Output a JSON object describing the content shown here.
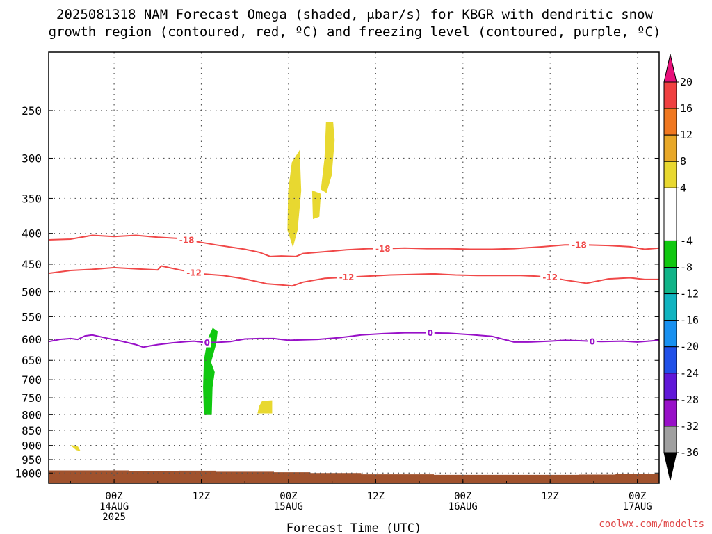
{
  "chart_data": {
    "type": "contour",
    "title_line1": "2025081318 NAM Forecast Omega (shaded, μbar/s) for KBGR with dendritic snow",
    "title_line2": "growth region (contoured, red, ºC) and freezing level (contoured, purple, ºC)",
    "xlabel": "Forecast Time (UTC)",
    "credit": "coolwx.com/modelts",
    "xlim": [
      -3,
      81
    ],
    "x_ticks": [
      {
        "hour": 6,
        "line1": "00Z",
        "line2": "14AUG",
        "line3": "2025"
      },
      {
        "hour": 18,
        "line1": "12Z",
        "line2": "",
        "line3": ""
      },
      {
        "hour": 30,
        "line1": "00Z",
        "line2": "15AUG",
        "line3": ""
      },
      {
        "hour": 42,
        "line1": "12Z",
        "line2": "",
        "line3": ""
      },
      {
        "hour": 54,
        "line1": "00Z",
        "line2": "16AUG",
        "line3": ""
      },
      {
        "hour": 66,
        "line1": "12Z",
        "line2": "",
        "line3": ""
      },
      {
        "hour": 78,
        "line1": "00Z",
        "line2": "17AUG",
        "line3": ""
      }
    ],
    "y_scale": "log-pressure (reversed)",
    "ylim_hpa": [
      1040,
      200
    ],
    "y_ticks": [
      250,
      300,
      350,
      400,
      450,
      500,
      550,
      600,
      650,
      700,
      750,
      800,
      850,
      900,
      950,
      1000
    ],
    "grid": true,
    "colorbar": {
      "ticks": [
        "20",
        "16",
        "12",
        "8",
        "4",
        "-4",
        "-8",
        "-12",
        "-16",
        "-20",
        "-24",
        "-28",
        "-32",
        "-36"
      ],
      "segments": [
        {
          "from": 20,
          "to": 24,
          "color": "#e8107a",
          "end": "top-arrow"
        },
        {
          "from": 16,
          "to": 20,
          "color": "#f04040"
        },
        {
          "from": 12,
          "to": 16,
          "color": "#f07820"
        },
        {
          "from": 8,
          "to": 12,
          "color": "#e8a828"
        },
        {
          "from": 4,
          "to": 8,
          "color": "#e8d830"
        },
        {
          "from": -4,
          "to": 4,
          "color": "#ffffff"
        },
        {
          "from": -8,
          "to": -4,
          "color": "#10c810"
        },
        {
          "from": -12,
          "to": -8,
          "color": "#10b488"
        },
        {
          "from": -16,
          "to": -12,
          "color": "#10b4c0"
        },
        {
          "from": -20,
          "to": -16,
          "color": "#1890f0"
        },
        {
          "from": -24,
          "to": -20,
          "color": "#2050e8"
        },
        {
          "from": -28,
          "to": -24,
          "color": "#6018d8"
        },
        {
          "from": -32,
          "to": -28,
          "color": "#9810c8"
        },
        {
          "from": -36,
          "to": -32,
          "color": "#a0a0a0"
        },
        {
          "from": -40,
          "to": -36,
          "color": "#000000",
          "end": "bottom-arrow"
        }
      ]
    },
    "shaded_regions": [
      {
        "value_band": "4 to 8",
        "color": "#e8d830",
        "points": [
          [
            30.5,
            305
          ],
          [
            31.5,
            292
          ],
          [
            31.7,
            340
          ],
          [
            31.2,
            395
          ],
          [
            30.6,
            420
          ],
          [
            29.9,
            395
          ],
          [
            30.0,
            340
          ]
        ]
      },
      {
        "value_band": "4 to 8",
        "color": "#e8d830",
        "points": [
          [
            35.2,
            262
          ],
          [
            36.1,
            262
          ],
          [
            36.3,
            280
          ],
          [
            35.9,
            320
          ],
          [
            35.2,
            342
          ],
          [
            34.5,
            338
          ],
          [
            35.0,
            300
          ]
        ]
      },
      {
        "value_band": "4 to 8",
        "color": "#e8d830",
        "points": [
          [
            33.3,
            340
          ],
          [
            34.4,
            344
          ],
          [
            34.2,
            375
          ],
          [
            33.4,
            378
          ]
        ]
      },
      {
        "value_band": "-8 to -4",
        "color": "#10c810",
        "points": [
          [
            19.6,
            575
          ],
          [
            20.2,
            582
          ],
          [
            20.0,
            610
          ],
          [
            19.3,
            655
          ],
          [
            19.8,
            680
          ],
          [
            19.5,
            720
          ],
          [
            19.4,
            800
          ],
          [
            18.4,
            800
          ],
          [
            18.3,
            720
          ],
          [
            18.4,
            650
          ],
          [
            18.9,
            600
          ]
        ]
      },
      {
        "value_band": "4 to 8",
        "color": "#e8d830",
        "points": [
          [
            26.4,
            760
          ],
          [
            27.7,
            758
          ],
          [
            27.7,
            795
          ],
          [
            25.8,
            795
          ],
          [
            26.0,
            775
          ]
        ]
      },
      {
        "value_band": "4 to 8",
        "color": "#e8d830",
        "points": [
          [
            0.1,
            900
          ],
          [
            1.0,
            905
          ],
          [
            1.3,
            918
          ],
          [
            0.8,
            915
          ]
        ]
      }
    ],
    "ground": {
      "color": "#a0522d",
      "top": [
        [
          -3,
          990
        ],
        [
          3,
          990
        ],
        [
          8,
          993
        ],
        [
          15,
          991
        ],
        [
          20,
          995
        ],
        [
          28,
          997
        ],
        [
          33,
          1000
        ],
        [
          40,
          1005
        ],
        [
          50,
          1007
        ],
        [
          60,
          1007
        ],
        [
          70,
          1006
        ],
        [
          75,
          1003
        ],
        [
          81,
          1003
        ]
      ]
    },
    "contours": [
      {
        "name": "-18",
        "color": "#f04848",
        "labels_at": [
          16,
          43,
          70
        ],
        "points": [
          [
            -3,
            410
          ],
          [
            0,
            409
          ],
          [
            3,
            403
          ],
          [
            6,
            405
          ],
          [
            9,
            403
          ],
          [
            12,
            406
          ],
          [
            15,
            408
          ],
          [
            17,
            412
          ],
          [
            20,
            418
          ],
          [
            24,
            425
          ],
          [
            26,
            430
          ],
          [
            27.5,
            437
          ],
          [
            29,
            436
          ],
          [
            31,
            437
          ],
          [
            32,
            432
          ],
          [
            34,
            430
          ],
          [
            36,
            428
          ],
          [
            38,
            426
          ],
          [
            41,
            424
          ],
          [
            43,
            424
          ],
          [
            46,
            423
          ],
          [
            49,
            424
          ],
          [
            52,
            424
          ],
          [
            55,
            425
          ],
          [
            58,
            425
          ],
          [
            61,
            424
          ],
          [
            65,
            421
          ],
          [
            68,
            418
          ],
          [
            71,
            418
          ],
          [
            74,
            419
          ],
          [
            77,
            421
          ],
          [
            79,
            425
          ],
          [
            81,
            423
          ]
        ]
      },
      {
        "name": "-12",
        "color": "#f04848",
        "labels_at": [
          17,
          38,
          66
        ],
        "points": [
          [
            -3,
            466
          ],
          [
            0,
            461
          ],
          [
            3,
            459
          ],
          [
            6,
            456
          ],
          [
            9,
            458
          ],
          [
            12,
            460
          ],
          [
            12.5,
            453
          ],
          [
            15,
            460
          ],
          [
            18,
            467
          ],
          [
            21,
            470
          ],
          [
            24,
            476
          ],
          [
            27,
            485
          ],
          [
            29,
            487
          ],
          [
            30.5,
            489
          ],
          [
            32,
            482
          ],
          [
            35,
            475
          ],
          [
            38,
            473
          ],
          [
            41,
            471
          ],
          [
            44,
            469
          ],
          [
            47,
            468
          ],
          [
            50,
            467
          ],
          [
            53,
            469
          ],
          [
            56,
            470
          ],
          [
            59,
            470
          ],
          [
            62,
            470
          ],
          [
            64,
            471
          ],
          [
            66,
            473
          ],
          [
            68,
            478
          ],
          [
            71,
            484
          ],
          [
            74,
            476
          ],
          [
            77,
            474
          ],
          [
            79,
            477
          ],
          [
            81,
            477
          ]
        ]
      },
      {
        "name": "0",
        "color": "#9810c8",
        "labels_at": [
          18.8,
          49.5,
          71.8
        ],
        "points": [
          [
            -3,
            605
          ],
          [
            -1.5,
            600
          ],
          [
            0,
            598
          ],
          [
            1,
            600
          ],
          [
            2,
            592
          ],
          [
            3,
            590
          ],
          [
            5,
            597
          ],
          [
            7,
            604
          ],
          [
            9,
            612
          ],
          [
            10,
            618
          ],
          [
            11,
            615
          ],
          [
            12,
            612
          ],
          [
            14,
            608
          ],
          [
            16,
            605
          ],
          [
            17,
            604
          ],
          [
            18.5,
            607
          ],
          [
            20,
            607
          ],
          [
            22,
            605
          ],
          [
            24,
            599
          ],
          [
            26,
            598
          ],
          [
            28,
            598
          ],
          [
            30,
            602
          ],
          [
            34,
            600
          ],
          [
            37,
            596
          ],
          [
            40,
            590
          ],
          [
            43,
            587
          ],
          [
            46,
            585
          ],
          [
            49,
            585
          ],
          [
            52,
            586
          ],
          [
            55,
            589
          ],
          [
            58,
            593
          ],
          [
            61,
            606
          ],
          [
            63,
            606
          ],
          [
            66,
            604
          ],
          [
            68,
            602
          ],
          [
            70,
            603
          ],
          [
            73,
            605
          ],
          [
            76,
            604
          ],
          [
            78,
            606
          ],
          [
            81,
            602
          ]
        ]
      }
    ]
  }
}
